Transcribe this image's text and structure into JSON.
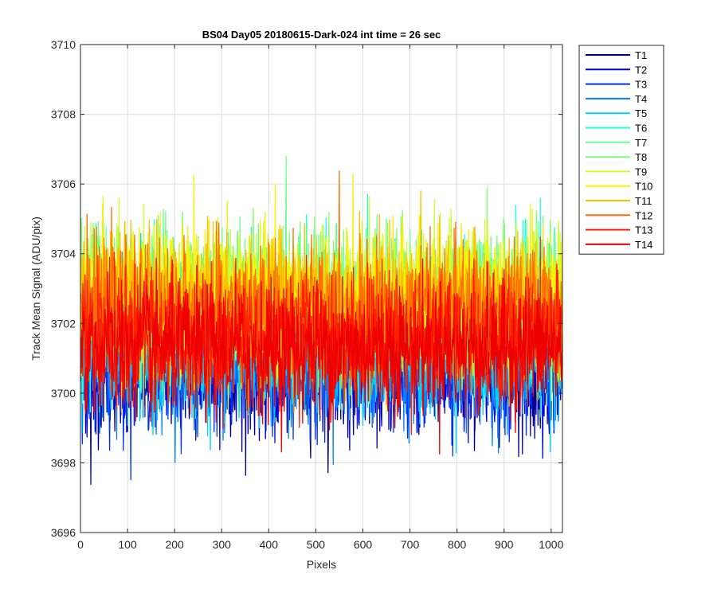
{
  "chart_data": {
    "type": "line",
    "title": "BS04 Day05 20180615-Dark-024 int time = 26 sec",
    "xlabel": "Pixels",
    "ylabel": "Track Mean Signal (ADU/pix)",
    "xlim": [
      0,
      1024
    ],
    "ylim": [
      3696,
      3710
    ],
    "xticks": [
      0,
      100,
      200,
      300,
      400,
      500,
      600,
      700,
      800,
      900,
      1000
    ],
    "yticks": [
      3696,
      3698,
      3700,
      3702,
      3704,
      3706,
      3708,
      3710
    ],
    "grid": true,
    "legend_position": "outside-top-right",
    "x_sampling": {
      "start": 1,
      "end": 1024,
      "step": 1
    },
    "series": [
      {
        "name": "T1",
        "color": "#00008f",
        "mean": 3700.6,
        "spread": 0.85
      },
      {
        "name": "T2",
        "color": "#0000df",
        "mean": 3700.8,
        "spread": 0.85
      },
      {
        "name": "T3",
        "color": "#0030ff",
        "mean": 3700.9,
        "spread": 0.9
      },
      {
        "name": "T4",
        "color": "#0080ff",
        "mean": 3701.0,
        "spread": 0.9
      },
      {
        "name": "T5",
        "color": "#00cfff",
        "mean": 3701.2,
        "spread": 0.95
      },
      {
        "name": "T6",
        "color": "#20ffdf",
        "mean": 3702.4,
        "spread": 1.0
      },
      {
        "name": "T7",
        "color": "#70ff8f",
        "mean": 3702.5,
        "spread": 1.0
      },
      {
        "name": "T8",
        "color": "#80ff70",
        "mean": 3702.7,
        "spread": 1.05
      },
      {
        "name": "T9",
        "color": "#cfff30",
        "mean": 3702.8,
        "spread": 1.0
      },
      {
        "name": "T10",
        "color": "#ffef00",
        "mean": 3702.7,
        "spread": 1.0
      },
      {
        "name": "T11",
        "color": "#ffbf00",
        "mean": 3702.5,
        "spread": 1.0
      },
      {
        "name": "T12",
        "color": "#ff7000",
        "mean": 3702.3,
        "spread": 0.95
      },
      {
        "name": "T13",
        "color": "#ff2000",
        "mean": 3701.6,
        "spread": 0.95
      },
      {
        "name": "T14",
        "color": "#ef0000",
        "mean": 3701.3,
        "spread": 0.9
      }
    ]
  }
}
